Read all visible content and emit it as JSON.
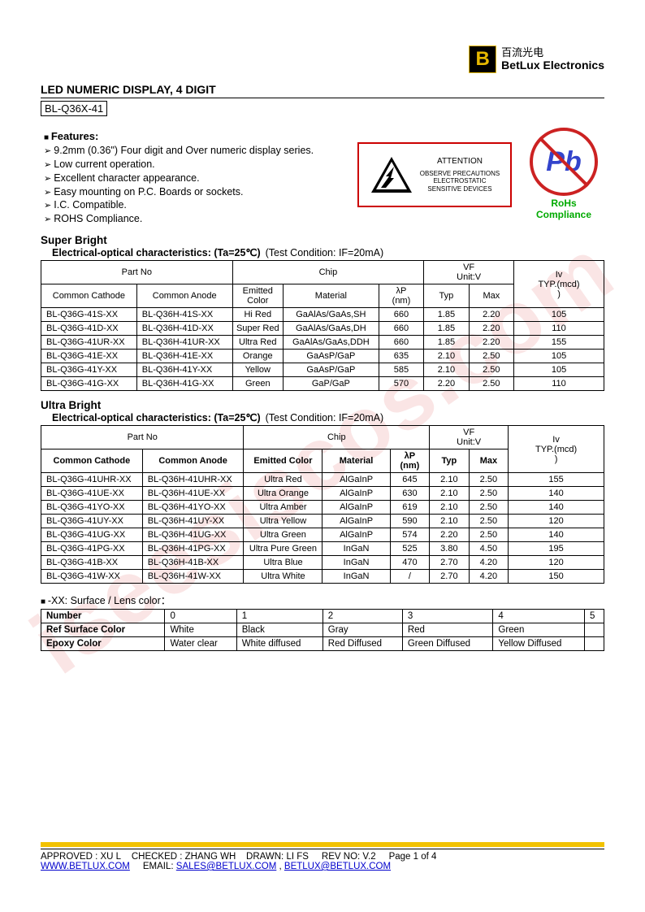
{
  "watermark": "iseesiscos.com",
  "logo": {
    "cn": "百流光电",
    "en": "BetLux Electronics"
  },
  "title": "LED NUMERIC DISPLAY, 4 DIGIT",
  "partnum": "BL-Q36X-41",
  "features": {
    "heading": "Features:",
    "items": [
      "9.2mm (0.36\") Four digit and Over numeric display series.",
      "Low current operation.",
      "Excellent character appearance.",
      "Easy mounting on P.C. Boards or sockets.",
      "I.C. Compatible.",
      "ROHS Compliance."
    ]
  },
  "esd": {
    "attention": "ATTENTION",
    "line1": "OBSERVE PRECAUTIONS",
    "line2": "ELECTROSTATIC",
    "line3": "SENSITIVE DEVICES"
  },
  "pb": {
    "symbol": "Pb",
    "label": "RoHs Compliance"
  },
  "super": {
    "title": "Super Bright",
    "sub": "Electrical-optical characteristics: (Ta=25℃)",
    "cond": "(Test Condition: IF=20mA)",
    "head": {
      "partno": "Part No",
      "chip": "Chip",
      "vf": "VF",
      "vfunit": "Unit:V",
      "iv": "Iv",
      "ivunit": "TYP.(mcd)",
      "cc": "Common Cathode",
      "ca": "Common Anode",
      "ecolor": "Emitted Color",
      "mat": "Material",
      "lp": "λP",
      "lpunit": "(nm)",
      "typ": "Typ",
      "max": "Max"
    },
    "rows": [
      {
        "cc": "BL-Q36G-41S-XX",
        "ca": "BL-Q36H-41S-XX",
        "col": "Hi Red",
        "mat": "GaAlAs/GaAs,SH",
        "lp": "660",
        "typ": "1.85",
        "max": "2.20",
        "iv": "105"
      },
      {
        "cc": "BL-Q36G-41D-XX",
        "ca": "BL-Q36H-41D-XX",
        "col": "Super Red",
        "mat": "GaAlAs/GaAs,DH",
        "lp": "660",
        "typ": "1.85",
        "max": "2.20",
        "iv": "110"
      },
      {
        "cc": "BL-Q36G-41UR-XX",
        "ca": "BL-Q36H-41UR-XX",
        "col": "Ultra Red",
        "mat": "GaAlAs/GaAs,DDH",
        "lp": "660",
        "typ": "1.85",
        "max": "2.20",
        "iv": "155"
      },
      {
        "cc": "BL-Q36G-41E-XX",
        "ca": "BL-Q36H-41E-XX",
        "col": "Orange",
        "mat": "GaAsP/GaP",
        "lp": "635",
        "typ": "2.10",
        "max": "2.50",
        "iv": "105"
      },
      {
        "cc": "BL-Q36G-41Y-XX",
        "ca": "BL-Q36H-41Y-XX",
        "col": "Yellow",
        "mat": "GaAsP/GaP",
        "lp": "585",
        "typ": "2.10",
        "max": "2.50",
        "iv": "105"
      },
      {
        "cc": "BL-Q36G-41G-XX",
        "ca": "BL-Q36H-41G-XX",
        "col": "Green",
        "mat": "GaP/GaP",
        "lp": "570",
        "typ": "2.20",
        "max": "2.50",
        "iv": "110"
      }
    ]
  },
  "ultra": {
    "title": "Ultra Bright",
    "sub": "Electrical-optical characteristics: (Ta=25℃)",
    "cond": "(Test Condition: IF=20mA)",
    "head": {
      "partno": "Part No",
      "chip": "Chip",
      "vf": "VF",
      "vfunit": "Unit:V",
      "iv": "Iv",
      "ivunit": "TYP.(mcd)",
      "cc": "Common Cathode",
      "ca": "Common Anode",
      "ecolor": "Emitted Color",
      "mat": "Material",
      "lp": "λP",
      "lpunit": "(nm)",
      "typ": "Typ",
      "max": "Max"
    },
    "rows": [
      {
        "cc": "BL-Q36G-41UHR-XX",
        "ca": "BL-Q36H-41UHR-XX",
        "col": "Ultra Red",
        "mat": "AlGaInP",
        "lp": "645",
        "typ": "2.10",
        "max": "2.50",
        "iv": "155"
      },
      {
        "cc": "BL-Q36G-41UE-XX",
        "ca": "BL-Q36H-41UE-XX",
        "col": "Ultra Orange",
        "mat": "AlGaInP",
        "lp": "630",
        "typ": "2.10",
        "max": "2.50",
        "iv": "140"
      },
      {
        "cc": "BL-Q36G-41YO-XX",
        "ca": "BL-Q36H-41YO-XX",
        "col": "Ultra Amber",
        "mat": "AlGaInP",
        "lp": "619",
        "typ": "2.10",
        "max": "2.50",
        "iv": "140"
      },
      {
        "cc": "BL-Q36G-41UY-XX",
        "ca": "BL-Q36H-41UY-XX",
        "col": "Ultra Yellow",
        "mat": "AlGaInP",
        "lp": "590",
        "typ": "2.10",
        "max": "2.50",
        "iv": "120"
      },
      {
        "cc": "BL-Q36G-41UG-XX",
        "ca": "BL-Q36H-41UG-XX",
        "col": "Ultra Green",
        "mat": "AlGaInP",
        "lp": "574",
        "typ": "2.20",
        "max": "2.50",
        "iv": "140"
      },
      {
        "cc": "BL-Q36G-41PG-XX",
        "ca": "BL-Q36H-41PG-XX",
        "col": "Ultra Pure Green",
        "mat": "InGaN",
        "lp": "525",
        "typ": "3.80",
        "max": "4.50",
        "iv": "195"
      },
      {
        "cc": "BL-Q36G-41B-XX",
        "ca": "BL-Q36H-41B-XX",
        "col": "Ultra Blue",
        "mat": "InGaN",
        "lp": "470",
        "typ": "2.70",
        "max": "4.20",
        "iv": "120"
      },
      {
        "cc": "BL-Q36G-41W-XX",
        "ca": "BL-Q36H-41W-XX",
        "col": "Ultra White",
        "mat": "InGaN",
        "lp": "/",
        "typ": "2.70",
        "max": "4.20",
        "iv": "150"
      }
    ]
  },
  "surface": {
    "title": "-XX: Surface / Lens color：",
    "num_label": "Number",
    "ref_label": "Ref Surface Color",
    "epoxy_label": "Epoxy Color",
    "nums": [
      "0",
      "1",
      "2",
      "3",
      "4",
      "5"
    ],
    "ref": [
      "White",
      "Black",
      "Gray",
      "Red",
      "Green",
      ""
    ],
    "epoxy": [
      "Water clear",
      "White diffused",
      "Red Diffused",
      "Green Diffused",
      "Yellow Diffused",
      ""
    ]
  },
  "footer": {
    "approved": "APPROVED : XU L",
    "checked": "CHECKED  : ZHANG WH",
    "drawn": "DRAWN:  LI  FS",
    "rev": "REV  NO:  V.2",
    "page": "Page 1 of 4",
    "site": "WWW.BETLUX.COM",
    "email_label": "EMAIL:",
    "email1": "SALES@BETLUX.COM",
    "email2": "BETLUX@BETLUX.COM"
  }
}
